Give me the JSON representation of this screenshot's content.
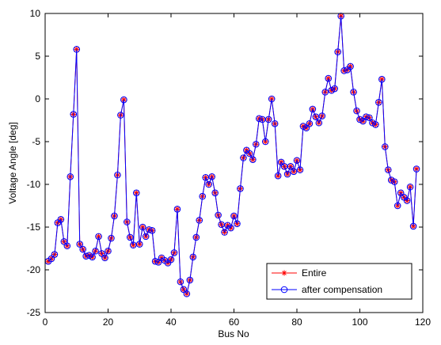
{
  "chart_data": {
    "type": "line",
    "xlabel": "Bus No",
    "ylabel": "Voltage Angle [deg]",
    "x": [
      1,
      2,
      3,
      4,
      5,
      6,
      7,
      8,
      9,
      10,
      11,
      12,
      13,
      14,
      15,
      16,
      17,
      18,
      19,
      20,
      21,
      22,
      23,
      24,
      25,
      26,
      27,
      28,
      29,
      30,
      31,
      32,
      33,
      34,
      35,
      36,
      37,
      38,
      39,
      40,
      41,
      42,
      43,
      44,
      45,
      46,
      47,
      48,
      49,
      50,
      51,
      52,
      53,
      54,
      55,
      56,
      57,
      58,
      59,
      60,
      61,
      62,
      63,
      64,
      65,
      66,
      67,
      68,
      69,
      70,
      71,
      72,
      73,
      74,
      75,
      76,
      77,
      78,
      79,
      80,
      81,
      82,
      83,
      84,
      85,
      86,
      87,
      88,
      89,
      90,
      91,
      92,
      93,
      94,
      95,
      96,
      97,
      98,
      99,
      100,
      101,
      102,
      103,
      104,
      105,
      106,
      107,
      108,
      109,
      110,
      111,
      112,
      113,
      114,
      115,
      116,
      117,
      118
    ],
    "series": [
      {
        "name": "Entire",
        "color": "#ff0000",
        "marker": "asterisk",
        "values": [
          -19,
          -18.7,
          -18.2,
          -14.5,
          -14.1,
          -16.7,
          -17.2,
          -9.1,
          -1.8,
          5.8,
          -17,
          -17.6,
          -18.4,
          -18.3,
          -18.5,
          -17.8,
          -16.1,
          -18.1,
          -18.6,
          -17.8,
          -16.3,
          -13.7,
          -8.9,
          -1.9,
          -0.1,
          -14.4,
          -16.2,
          -17.1,
          -11,
          -17,
          -15,
          -16.1,
          -15.3,
          -15.4,
          -19,
          -19.1,
          -18.6,
          -18.9,
          -19.2,
          -18.8,
          -18,
          -12.9,
          -21.4,
          -22.3,
          -22.8,
          -21.2,
          -18.5,
          -16.2,
          -14.2,
          -11.4,
          -9.2,
          -10,
          -9.1,
          -11,
          -13.6,
          -14.7,
          -15.6,
          -14.8,
          -15.1,
          -13.7,
          -14.6,
          -10.5,
          -6.9,
          -6,
          -6.4,
          -7.1,
          -5.3,
          -2.3,
          -2.4,
          -5,
          -2.4,
          0,
          -2.9,
          -9,
          -7.4,
          -7.9,
          -8.8,
          -7.9,
          -8.5,
          -7.2,
          -8.3,
          -3.2,
          -3.4,
          -2.9,
          -1.2,
          -2.1,
          -2.8,
          -2,
          0.8,
          2.4,
          1,
          1.2,
          5.5,
          9.7,
          3.3,
          3.4,
          3.8,
          0.8,
          -1.4,
          -2.4,
          -2.6,
          -2.1,
          -2.2,
          -2.8,
          -3,
          -0.4,
          2.3,
          -5.6,
          -8.3,
          -9.5,
          -9.7,
          -12.5,
          -11,
          -11.5,
          -11.9,
          -10.3,
          -14.9,
          -8.2
        ]
      },
      {
        "name": "after compensation",
        "color": "#0000ff",
        "marker": "circle",
        "values": [
          -19,
          -18.7,
          -18.2,
          -14.5,
          -14.1,
          -16.7,
          -17.2,
          -9.1,
          -1.8,
          5.8,
          -17,
          -17.6,
          -18.4,
          -18.3,
          -18.5,
          -17.8,
          -16.1,
          -18.1,
          -18.6,
          -17.8,
          -16.3,
          -13.7,
          -8.9,
          -1.9,
          -0.1,
          -14.4,
          -16.2,
          -17.1,
          -11,
          -17,
          -15,
          -16.1,
          -15.3,
          -15.4,
          -19,
          -19.1,
          -18.6,
          -18.9,
          -19.2,
          -18.8,
          -18,
          -12.9,
          -21.4,
          -22.3,
          -22.8,
          -21.2,
          -18.5,
          -16.2,
          -14.2,
          -11.4,
          -9.2,
          -10,
          -9.1,
          -11,
          -13.6,
          -14.7,
          -15.6,
          -14.8,
          -15.1,
          -13.7,
          -14.6,
          -10.5,
          -6.9,
          -6,
          -6.4,
          -7.1,
          -5.3,
          -2.3,
          -2.4,
          -5,
          -2.4,
          0,
          -2.9,
          -9,
          -7.4,
          -7.9,
          -8.8,
          -7.9,
          -8.5,
          -7.2,
          -8.3,
          -3.2,
          -3.4,
          -2.9,
          -1.2,
          -2.1,
          -2.8,
          -2,
          0.8,
          2.4,
          1,
          1.2,
          5.5,
          9.7,
          3.3,
          3.4,
          3.8,
          0.8,
          -1.4,
          -2.4,
          -2.6,
          -2.1,
          -2.2,
          -2.8,
          -3,
          -0.4,
          2.3,
          -5.6,
          -8.3,
          -9.5,
          -9.7,
          -12.5,
          -11,
          -11.5,
          -11.9,
          -10.3,
          -14.9,
          -8.2
        ]
      }
    ],
    "xlim": [
      0,
      120
    ],
    "xticks": [
      0,
      20,
      40,
      60,
      80,
      100,
      120
    ],
    "ylim": [
      -25,
      10
    ],
    "yticks": [
      -25,
      -20,
      -15,
      -10,
      -5,
      0,
      5,
      10
    ],
    "grid": false,
    "legend": "lower right"
  }
}
